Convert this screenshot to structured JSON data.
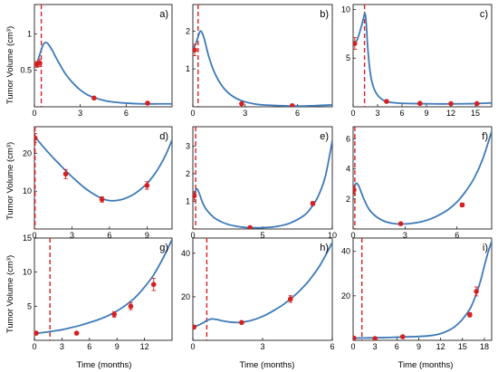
{
  "colors": {
    "curve": "#3d7ab8",
    "marker": "#d62020",
    "dash": "#d62020"
  },
  "labels": {
    "ylabel": "Tumor Volume (cm³)",
    "xlabel": "Time (months)"
  },
  "chart_data": [
    {
      "type": "line",
      "panel": "a)",
      "xlim": [
        0,
        9
      ],
      "ylim": [
        0,
        1.4
      ],
      "xticks": [
        0,
        3,
        6
      ],
      "yticks": [
        0.5,
        1
      ],
      "dashed_x": 0.45,
      "curve": [
        [
          0,
          0.55
        ],
        [
          0.2,
          0.62
        ],
        [
          0.45,
          0.78
        ],
        [
          0.6,
          0.86
        ],
        [
          0.75,
          0.88
        ],
        [
          0.9,
          0.86
        ],
        [
          1.2,
          0.76
        ],
        [
          1.5,
          0.64
        ],
        [
          2,
          0.46
        ],
        [
          2.5,
          0.33
        ],
        [
          3,
          0.23
        ],
        [
          3.5,
          0.16
        ],
        [
          4,
          0.12
        ],
        [
          4.5,
          0.09
        ],
        [
          5,
          0.07
        ],
        [
          6,
          0.05
        ],
        [
          7,
          0.04
        ],
        [
          8,
          0.04
        ],
        [
          9,
          0.04
        ]
      ],
      "points": [
        {
          "x": 0.15,
          "y": 0.58,
          "err": 0.04
        },
        {
          "x": 0.35,
          "y": 0.6,
          "err": 0.05
        },
        {
          "x": 3.9,
          "y": 0.12,
          "err": 0.01
        },
        {
          "x": 7.4,
          "y": 0.05,
          "err": 0.01
        }
      ]
    },
    {
      "type": "line",
      "panel": "b)",
      "xlim": [
        0,
        8
      ],
      "ylim": [
        0,
        2.7
      ],
      "xticks": [
        0,
        3,
        6
      ],
      "yticks": [
        1,
        2
      ],
      "dashed_x": 0.3,
      "curve": [
        [
          0,
          1.55
        ],
        [
          0.15,
          1.65
        ],
        [
          0.3,
          1.85
        ],
        [
          0.4,
          1.98
        ],
        [
          0.5,
          1.98
        ],
        [
          0.65,
          1.8
        ],
        [
          0.9,
          1.35
        ],
        [
          1.2,
          0.95
        ],
        [
          1.6,
          0.6
        ],
        [
          2,
          0.38
        ],
        [
          2.5,
          0.22
        ],
        [
          3,
          0.13
        ],
        [
          3.5,
          0.08
        ],
        [
          4,
          0.05
        ],
        [
          5,
          0.03
        ],
        [
          6,
          0.02
        ],
        [
          7,
          0.03
        ],
        [
          8,
          0.05
        ]
      ],
      "points": [
        {
          "x": 0.1,
          "y": 1.5,
          "err": 0.15
        },
        {
          "x": 2.8,
          "y": 0.08,
          "err": 0.01
        },
        {
          "x": 5.7,
          "y": 0.03,
          "err": 0.01
        }
      ]
    },
    {
      "type": "line",
      "panel": "c)",
      "xlim": [
        0,
        17
      ],
      "ylim": [
        0,
        10.5
      ],
      "xticks": [
        0,
        3,
        6,
        9,
        12,
        15
      ],
      "yticks": [
        5,
        10
      ],
      "dashed_x": 1.4,
      "curve": [
        [
          0,
          6.3
        ],
        [
          0.5,
          6.9
        ],
        [
          1,
          8.2
        ],
        [
          1.3,
          9.2
        ],
        [
          1.45,
          9.6
        ],
        [
          1.6,
          8.7
        ],
        [
          1.8,
          6
        ],
        [
          2.1,
          3.5
        ],
        [
          2.5,
          2
        ],
        [
          3,
          1.2
        ],
        [
          3.5,
          0.8
        ],
        [
          4,
          0.55
        ],
        [
          5,
          0.42
        ],
        [
          6,
          0.36
        ],
        [
          8,
          0.32
        ],
        [
          10,
          0.3
        ],
        [
          12,
          0.3
        ],
        [
          14,
          0.31
        ],
        [
          15,
          0.33
        ],
        [
          17,
          0.4
        ]
      ],
      "points": [
        {
          "x": 0.2,
          "y": 6.5,
          "err": 0.6
        },
        {
          "x": 4.1,
          "y": 0.55,
          "err": 0.08
        },
        {
          "x": 8.2,
          "y": 0.35,
          "err": 0.05
        },
        {
          "x": 12,
          "y": 0.32,
          "err": 0.05
        },
        {
          "x": 15.2,
          "y": 0.33,
          "err": 0.05
        }
      ]
    },
    {
      "type": "line",
      "panel": "d)",
      "xlim": [
        0,
        11
      ],
      "ylim": [
        0,
        27
      ],
      "xticks": [
        0,
        3,
        6,
        9
      ],
      "yticks": [
        10,
        20
      ],
      "dashed_x": 0.05,
      "curve": [
        [
          0,
          24.5
        ],
        [
          0.5,
          22.5
        ],
        [
          1,
          20.6
        ],
        [
          1.5,
          18.8
        ],
        [
          2,
          17.1
        ],
        [
          2.5,
          15.4
        ],
        [
          3,
          13.8
        ],
        [
          3.5,
          12.3
        ],
        [
          4,
          10.9
        ],
        [
          4.5,
          9.7
        ],
        [
          5,
          8.7
        ],
        [
          5.5,
          7.9
        ],
        [
          6,
          7.5
        ],
        [
          6.5,
          7.5
        ],
        [
          7,
          7.8
        ],
        [
          7.5,
          8.4
        ],
        [
          8,
          9.3
        ],
        [
          8.5,
          10.5
        ],
        [
          9,
          12
        ],
        [
          9.5,
          14
        ],
        [
          10,
          16.5
        ],
        [
          10.5,
          19.6
        ],
        [
          11,
          23.5
        ]
      ],
      "points": [
        {
          "x": 0.05,
          "y": 24,
          "err": 1.2
        },
        {
          "x": 2.5,
          "y": 14.5,
          "err": 1.2
        },
        {
          "x": 5.4,
          "y": 7.8,
          "err": 0.7
        },
        {
          "x": 9,
          "y": 11.5,
          "err": 1
        }
      ]
    },
    {
      "type": "line",
      "panel": "e)",
      "xlim": [
        0,
        10
      ],
      "ylim": [
        0,
        3.7
      ],
      "xticks": [
        0,
        5,
        10
      ],
      "yticks": [
        1,
        2,
        3
      ],
      "dashed_x": 0.2,
      "curve": [
        [
          0,
          1.2
        ],
        [
          0.15,
          1.35
        ],
        [
          0.3,
          1.45
        ],
        [
          0.45,
          1.3
        ],
        [
          0.7,
          0.95
        ],
        [
          1,
          0.68
        ],
        [
          1.5,
          0.42
        ],
        [
          2,
          0.27
        ],
        [
          2.5,
          0.17
        ],
        [
          3,
          0.11
        ],
        [
          3.5,
          0.07
        ],
        [
          4,
          0.05
        ],
        [
          5,
          0.05
        ],
        [
          6,
          0.09
        ],
        [
          7,
          0.22
        ],
        [
          8,
          0.5
        ],
        [
          8.5,
          0.78
        ],
        [
          9,
          1.2
        ],
        [
          9.5,
          1.9
        ],
        [
          10,
          3.2
        ]
      ],
      "points": [
        {
          "x": 0.1,
          "y": 1.2,
          "err": 0.15
        },
        {
          "x": 4.1,
          "y": 0.05,
          "err": 0.02
        },
        {
          "x": 8.6,
          "y": 0.92,
          "err": 0.07
        }
      ]
    },
    {
      "type": "line",
      "panel": "f)",
      "xlim": [
        0,
        8
      ],
      "ylim": [
        0,
        6.8
      ],
      "xticks": [
        0,
        3,
        6
      ],
      "yticks": [
        2,
        4,
        6
      ],
      "dashed_x": 0.1,
      "curve": [
        [
          0,
          2.6
        ],
        [
          0.1,
          2.9
        ],
        [
          0.2,
          3.05
        ],
        [
          0.35,
          2.8
        ],
        [
          0.6,
          2.05
        ],
        [
          0.9,
          1.35
        ],
        [
          1.3,
          0.85
        ],
        [
          1.8,
          0.52
        ],
        [
          2.3,
          0.37
        ],
        [
          2.8,
          0.33
        ],
        [
          3.3,
          0.36
        ],
        [
          4,
          0.5
        ],
        [
          4.5,
          0.68
        ],
        [
          5,
          0.95
        ],
        [
          5.5,
          1.3
        ],
        [
          6,
          1.8
        ],
        [
          6.5,
          2.5
        ],
        [
          7,
          3.4
        ],
        [
          7.5,
          4.7
        ],
        [
          8,
          6.5
        ]
      ],
      "points": [
        {
          "x": 0.05,
          "y": 2.6,
          "err": 0.3
        },
        {
          "x": 2.75,
          "y": 0.35,
          "err": 0.04
        },
        {
          "x": 6.3,
          "y": 1.6,
          "err": 0.12
        }
      ]
    },
    {
      "type": "line",
      "panel": "g)",
      "xlim": [
        0,
        15
      ],
      "ylim": [
        0,
        15
      ],
      "xticks": [
        0,
        3,
        6,
        9,
        12
      ],
      "yticks": [
        5,
        10,
        15
      ],
      "dashed_x": 1.7,
      "curve": [
        [
          0,
          1.0
        ],
        [
          1,
          1.15
        ],
        [
          2,
          1.35
        ],
        [
          3,
          1.55
        ],
        [
          4,
          1.85
        ],
        [
          5,
          2.2
        ],
        [
          6,
          2.6
        ],
        [
          7,
          3.05
        ],
        [
          8,
          3.6
        ],
        [
          9,
          4.3
        ],
        [
          10,
          5.2
        ],
        [
          11,
          6.3
        ],
        [
          12,
          7.8
        ],
        [
          13,
          9.6
        ],
        [
          14,
          12
        ],
        [
          15,
          14.8
        ]
      ],
      "points": [
        {
          "x": 0.2,
          "y": 1.05,
          "err": 0.1
        },
        {
          "x": 4.6,
          "y": 1.05,
          "err": 0.1
        },
        {
          "x": 8.7,
          "y": 3.8,
          "err": 0.4
        },
        {
          "x": 10.5,
          "y": 5,
          "err": 0.5
        },
        {
          "x": 13,
          "y": 8.2,
          "err": 0.9
        }
      ]
    },
    {
      "type": "line",
      "panel": "h)",
      "xlim": [
        0,
        6
      ],
      "ylim": [
        0,
        47
      ],
      "xticks": [
        0,
        3,
        6
      ],
      "yticks": [
        20,
        40
      ],
      "dashed_x": 0.6,
      "curve": [
        [
          0,
          6.2
        ],
        [
          0.2,
          6.8
        ],
        [
          0.4,
          7.8
        ],
        [
          0.6,
          9.1
        ],
        [
          0.8,
          9.8
        ],
        [
          1,
          9.6
        ],
        [
          1.3,
          8.9
        ],
        [
          1.6,
          8.4
        ],
        [
          2,
          8.2
        ],
        [
          2.5,
          9.1
        ],
        [
          3,
          11
        ],
        [
          3.5,
          13.8
        ],
        [
          4,
          17.3
        ],
        [
          4.5,
          21.8
        ],
        [
          5,
          27.5
        ],
        [
          5.5,
          35
        ],
        [
          6,
          45
        ]
      ],
      "points": [
        {
          "x": 0.05,
          "y": 6.1,
          "err": 0.5
        },
        {
          "x": 2.1,
          "y": 8.2,
          "err": 0.6
        },
        {
          "x": 4.2,
          "y": 19,
          "err": 1.5
        }
      ]
    },
    {
      "type": "line",
      "panel": "i)",
      "xlim": [
        0,
        19
      ],
      "ylim": [
        0,
        46
      ],
      "xticks": [
        0,
        3,
        6,
        9,
        12,
        15,
        18
      ],
      "yticks": [
        20,
        40
      ],
      "dashed_x": 1.2,
      "curve": [
        [
          0,
          1.0
        ],
        [
          2,
          1.1
        ],
        [
          4,
          1.2
        ],
        [
          6,
          1.4
        ],
        [
          8,
          1.6
        ],
        [
          10,
          1.9
        ],
        [
          11,
          2.3
        ],
        [
          12,
          3.0
        ],
        [
          13,
          4.3
        ],
        [
          14,
          6.3
        ],
        [
          15,
          9.5
        ],
        [
          16,
          14
        ],
        [
          16.5,
          17.5
        ],
        [
          17,
          21.8
        ],
        [
          17.5,
          27
        ],
        [
          18,
          33.5
        ],
        [
          18.5,
          39.5
        ],
        [
          19,
          44.5
        ]
      ],
      "points": [
        {
          "x": 0.1,
          "y": 1.0,
          "err": 0.2
        },
        {
          "x": 3,
          "y": 0.8,
          "err": 0.2
        },
        {
          "x": 6.8,
          "y": 1.6,
          "err": 0.3
        },
        {
          "x": 16,
          "y": 11.5,
          "err": 1.0
        },
        {
          "x": 16.9,
          "y": 22,
          "err": 2.0
        }
      ]
    }
  ]
}
